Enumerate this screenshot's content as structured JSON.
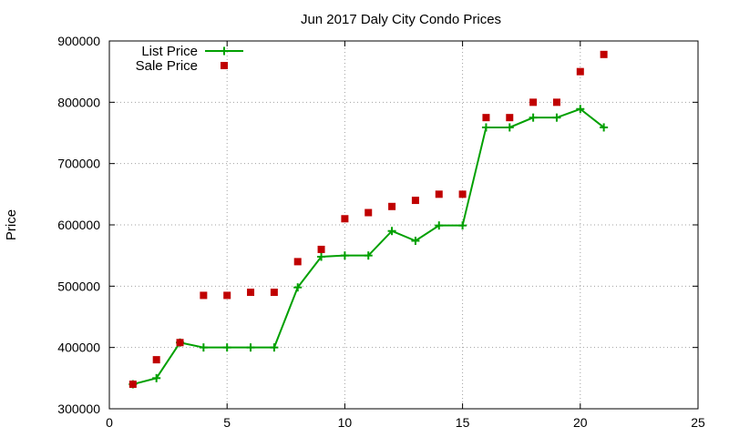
{
  "chart_data": {
    "type": "line",
    "title": "Jun 2017 Daly City Condo Prices",
    "xlabel": "",
    "ylabel": "Price",
    "xlim": [
      0,
      25
    ],
    "ylim": [
      300000,
      900000
    ],
    "xticks": [
      0,
      5,
      10,
      15,
      20,
      25
    ],
    "yticks": [
      300000,
      400000,
      500000,
      600000,
      700000,
      800000,
      900000
    ],
    "xtick_labels": [
      "0",
      "5",
      "10",
      "15",
      "20",
      "25"
    ],
    "ytick_labels": [
      "300000",
      "400000",
      "500000",
      "600000",
      "700000",
      "800000",
      "900000"
    ],
    "grid": true,
    "legend_position": "top-left",
    "series": [
      {
        "name": "List Price",
        "style": "line-plus",
        "color": "#00a000",
        "points": [
          [
            1,
            340000
          ],
          [
            2,
            350000
          ],
          [
            3,
            408000
          ],
          [
            4,
            400000
          ],
          [
            5,
            400000
          ],
          [
            6,
            400000
          ],
          [
            7,
            400000
          ],
          [
            8,
            498000
          ],
          [
            9,
            548000
          ],
          [
            10,
            550000
          ],
          [
            11,
            550000
          ],
          [
            12,
            590000
          ],
          [
            13,
            574000
          ],
          [
            14,
            599000
          ],
          [
            15,
            599000
          ],
          [
            16,
            759000
          ],
          [
            17,
            759000
          ],
          [
            18,
            775000
          ],
          [
            19,
            775000
          ],
          [
            20,
            789000
          ],
          [
            21,
            759000
          ]
        ]
      },
      {
        "name": "Sale Price",
        "style": "square-points",
        "color": "#c00000",
        "points": [
          [
            1,
            340000
          ],
          [
            2,
            380000
          ],
          [
            3,
            408000
          ],
          [
            4,
            485000
          ],
          [
            5,
            485000
          ],
          [
            6,
            490000
          ],
          [
            7,
            490000
          ],
          [
            8,
            540000
          ],
          [
            9,
            560000
          ],
          [
            10,
            610000
          ],
          [
            11,
            620000
          ],
          [
            12,
            630000
          ],
          [
            13,
            640000
          ],
          [
            14,
            650000
          ],
          [
            15,
            650000
          ],
          [
            16,
            775000
          ],
          [
            17,
            775000
          ],
          [
            18,
            800000
          ],
          [
            19,
            800000
          ],
          [
            20,
            850000
          ],
          [
            21,
            878000
          ]
        ]
      }
    ]
  }
}
